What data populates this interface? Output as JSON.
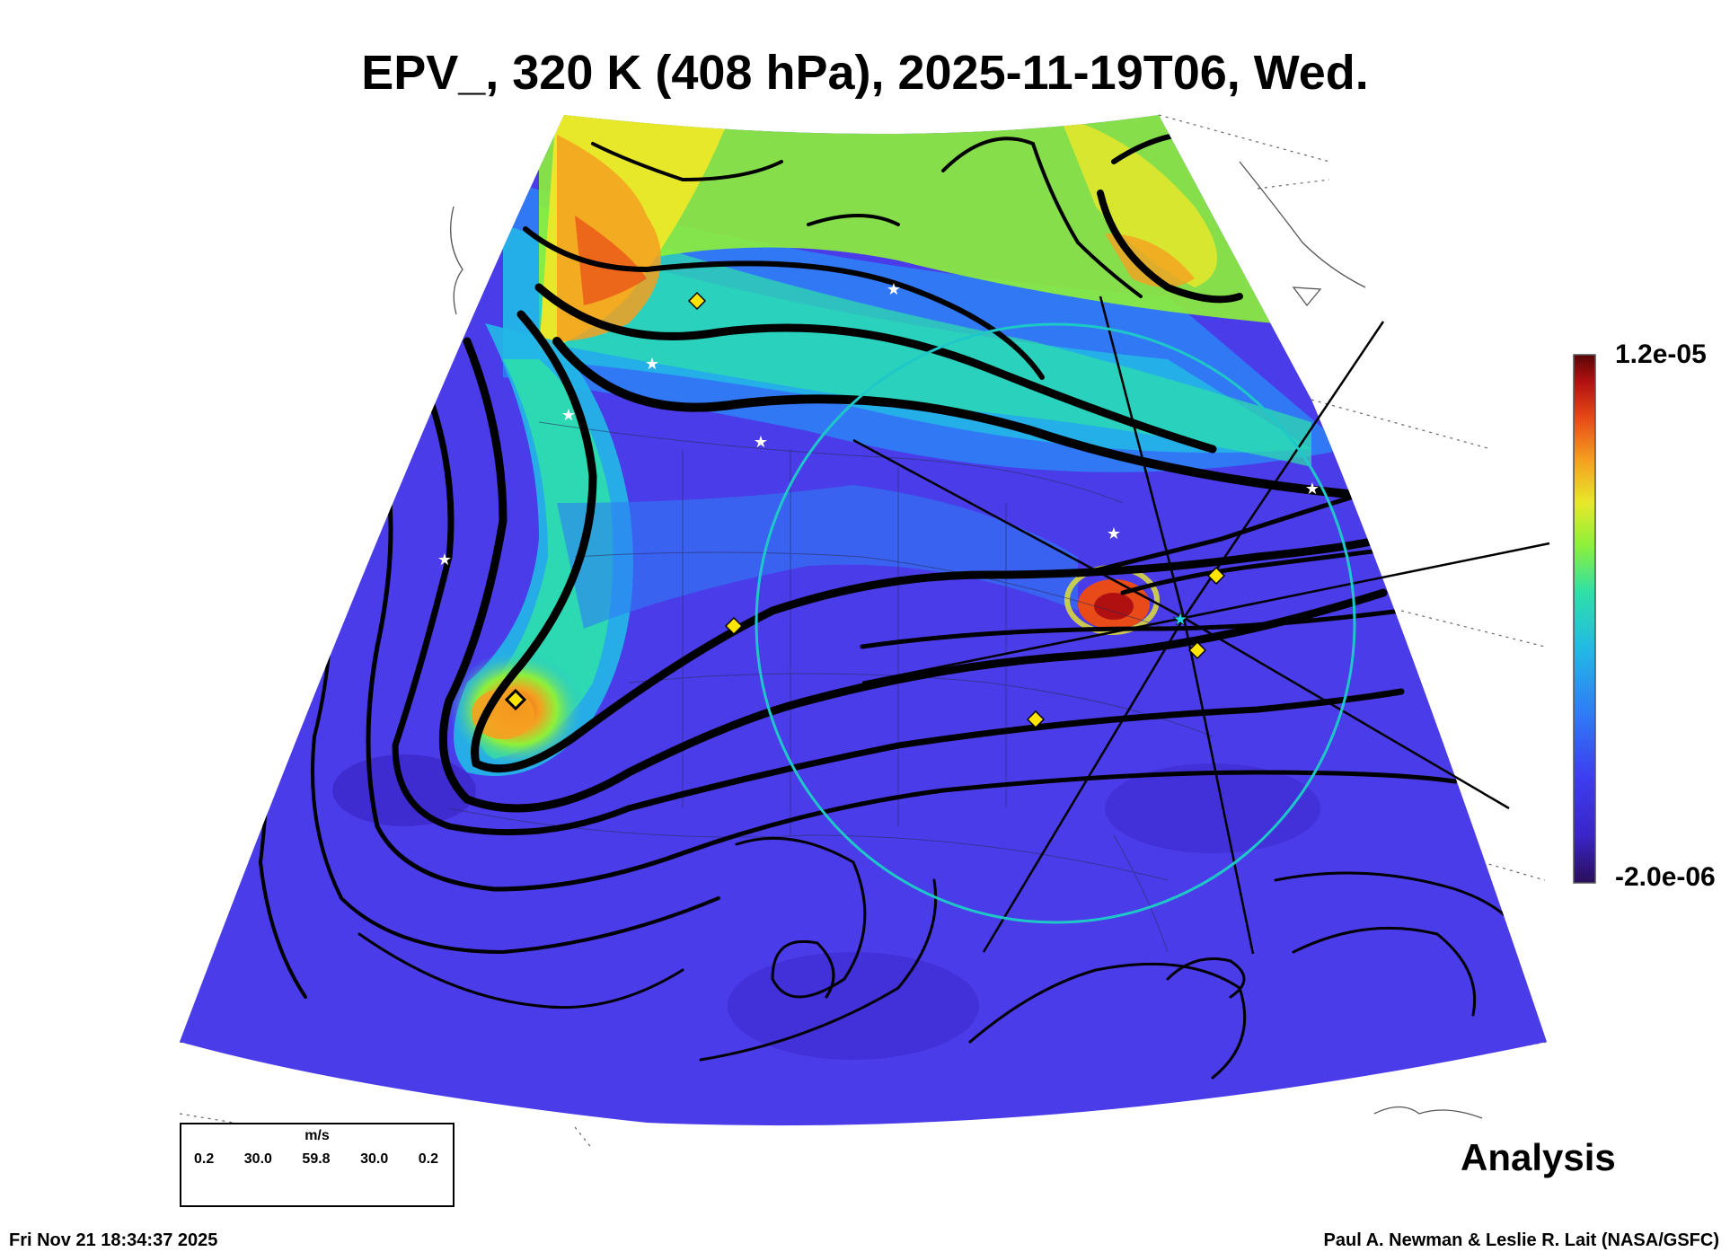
{
  "title": "EPV_, 320 K (408 hPa), 2025-11-19T06, Wed.",
  "colorbar": {
    "max_label": "1.2e-05",
    "min_label": "-2.0e-06",
    "colors": [
      "#2a0e5a",
      "#3a25c8",
      "#3d3df0",
      "#2f7bf5",
      "#22b8e6",
      "#2ee0a8",
      "#8ef03a",
      "#e8e82a",
      "#f5a020",
      "#e84a18",
      "#b01010",
      "#5a0606"
    ]
  },
  "wind_legend": {
    "unit": "m/s",
    "speeds": [
      "0.2",
      "30.0",
      "59.8",
      "30.0",
      "0.2"
    ]
  },
  "product_label": "Analysis",
  "timestamp": "Fri Nov 21 18:34:37 2025",
  "credit": "Paul A. Newman & Leslie R. Lait (NASA/GSFC)",
  "map_colors": {
    "background_field": "#4a3ce8",
    "trajectory_ring": "#1fc8c8",
    "streamline": "#000000",
    "marker_diamond": "#ffe400",
    "marker_star": "#ffffff"
  }
}
